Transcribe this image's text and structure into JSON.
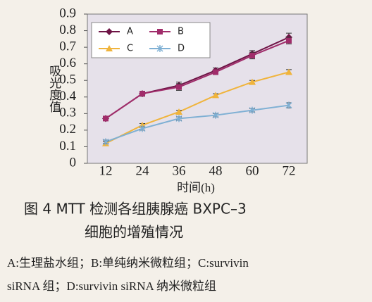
{
  "chart_data": {
    "type": "line",
    "y_label": "吸光度值",
    "x_label": "时间(h)",
    "categories": [
      12,
      24,
      36,
      48,
      60,
      72
    ],
    "ylim": [
      0,
      0.9
    ],
    "yticks": [
      0,
      0.1,
      0.2,
      0.3,
      0.4,
      0.5,
      0.6,
      0.7,
      0.8,
      0.9
    ],
    "legend": "top-left",
    "series": [
      {
        "name": "A",
        "color": "#6e1446",
        "marker": "diamond",
        "values": [
          0.27,
          0.42,
          0.47,
          0.56,
          0.66,
          0.76
        ],
        "errors": [
          0.01,
          0.015,
          0.02,
          0.015,
          0.02,
          0.025
        ]
      },
      {
        "name": "B",
        "color": "#a02c6a",
        "marker": "square",
        "values": [
          0.27,
          0.42,
          0.46,
          0.55,
          0.65,
          0.74
        ],
        "errors": [
          0.01,
          0.015,
          0.02,
          0.015,
          0.02,
          0.02
        ]
      },
      {
        "name": "C",
        "color": "#f0b43c",
        "marker": "triangle",
        "values": [
          0.12,
          0.23,
          0.31,
          0.41,
          0.49,
          0.55
        ],
        "errors": [
          0.01,
          0.01,
          0.01,
          0.01,
          0.01,
          0.015
        ]
      },
      {
        "name": "D",
        "color": "#7fb0d4",
        "marker": "cross",
        "values": [
          0.13,
          0.21,
          0.27,
          0.29,
          0.32,
          0.35
        ],
        "errors": [
          0.01,
          0.01,
          0.01,
          0.01,
          0.01,
          0.015
        ]
      }
    ]
  },
  "caption": {
    "title": [
      "图 4   MTT 检测各组胰腺癌 BXPC–3",
      "细胞的增殖情况"
    ],
    "note": [
      "A:生理盐水组；B:单纯纳米微粒组；C:survivin",
      "siRNA 组；D:survivin siRNA 纳米微粒组"
    ]
  }
}
